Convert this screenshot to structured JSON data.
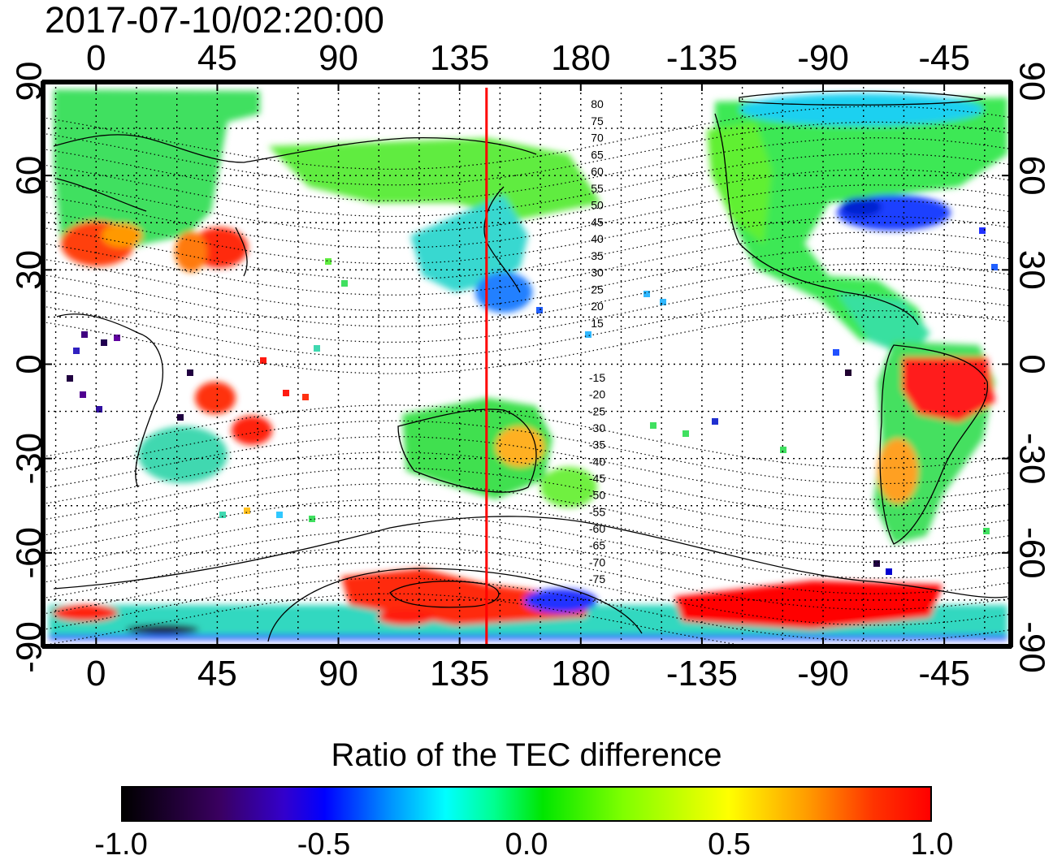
{
  "timestamp": "2017-07-10/02:20:00",
  "map": {
    "lon_ticks": [
      {
        "value": 0,
        "label": "0"
      },
      {
        "value": 45,
        "label": "45"
      },
      {
        "value": 90,
        "label": "90"
      },
      {
        "value": 135,
        "label": "135"
      },
      {
        "value": 180,
        "label": "180"
      },
      {
        "value": 225,
        "label": "-135"
      },
      {
        "value": 270,
        "label": "-90"
      },
      {
        "value": 315,
        "label": "-45"
      }
    ],
    "lat_ticks": [
      {
        "value": 90,
        "label": "90"
      },
      {
        "value": 60,
        "label": "60"
      },
      {
        "value": 30,
        "label": "30"
      },
      {
        "value": 0,
        "label": "0"
      },
      {
        "value": -30,
        "label": "-30"
      },
      {
        "value": -60,
        "label": "-60"
      },
      {
        "value": -90,
        "label": "-90"
      }
    ],
    "lon_range": [
      -20,
      340
    ],
    "lat_range": [
      -90,
      90
    ],
    "red_meridian_lon": 145,
    "magnetic_latitude_labels": {
      "north": [
        "80",
        "75",
        "70",
        "65",
        "60",
        "55",
        "50",
        "45",
        "40",
        "35",
        "30",
        "25",
        "20",
        "15"
      ],
      "south": [
        "15",
        "20",
        "25",
        "30",
        "35",
        "40",
        "45",
        "50",
        "55",
        "60",
        "65",
        "70",
        "75"
      ]
    },
    "colors": {
      "strong_negative": "#0000ff",
      "weak_negative": "#00c8ff",
      "neutral": "#00e000",
      "weak_positive": "#b0ff00",
      "strong_positive": "#ff0000",
      "meridian": "#ff0000"
    }
  },
  "colorbar": {
    "title": "Ratio of the TEC difference",
    "ticks": [
      {
        "value": -1.0,
        "label": "-1.0"
      },
      {
        "value": -0.5,
        "label": "-0.5"
      },
      {
        "value": 0.0,
        "label": "0.0"
      },
      {
        "value": 0.5,
        "label": "0.5"
      },
      {
        "value": 1.0,
        "label": "1.0"
      }
    ],
    "range": [
      -1.0,
      1.0
    ]
  }
}
